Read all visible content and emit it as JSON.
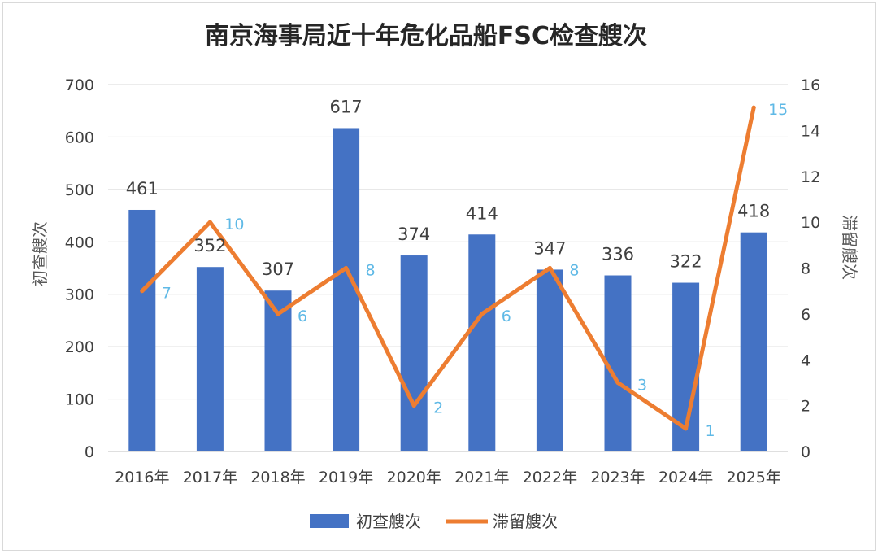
{
  "chart_data": {
    "type": "bar",
    "title": "南京海事局近十年危化品船FSC检查艘次",
    "categories": [
      "2016年",
      "2017年",
      "2018年",
      "2019年",
      "2020年",
      "2021年",
      "2022年",
      "2023年",
      "2024年",
      "2025年"
    ],
    "series": [
      {
        "name": "初查艘次",
        "type": "bar",
        "axis": "left",
        "color": "#4472c4",
        "values": [
          461,
          352,
          307,
          617,
          374,
          414,
          347,
          336,
          322,
          418
        ]
      },
      {
        "name": "滞留艘次",
        "type": "line",
        "axis": "right",
        "color": "#ed7d31",
        "values": [
          7,
          10,
          6,
          8,
          2,
          6,
          8,
          3,
          1,
          15
        ]
      }
    ],
    "ylabel": "初查艘次",
    "y2label": "滞留艘次",
    "ylim": [
      0,
      700
    ],
    "y2lim": [
      0,
      16
    ],
    "yticks": [
      "0",
      "100",
      "200",
      "300",
      "400",
      "500",
      "600",
      "700"
    ],
    "y2ticks": [
      "0",
      "2",
      "4",
      "6",
      "8",
      "10",
      "12",
      "14",
      "16"
    ],
    "line_label_color": "#5fb9e6",
    "grid": true,
    "legend": "bottom"
  }
}
